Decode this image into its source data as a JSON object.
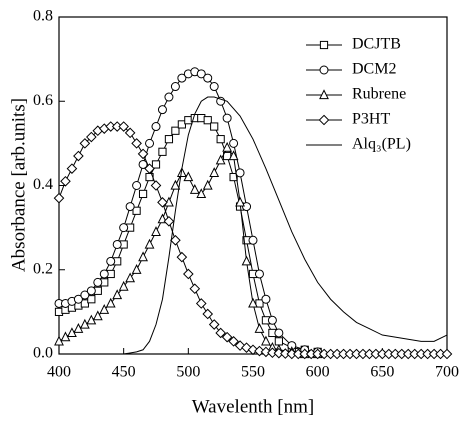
{
  "chart_data": {
    "type": "line",
    "xlabel": "Wavelenth [nm]",
    "ylabel": "Absorbance [arb.units]",
    "xlim": [
      400,
      700
    ],
    "ylim": [
      0,
      0.8
    ],
    "xticks": [
      400,
      450,
      500,
      550,
      600,
      650,
      700
    ],
    "yticks": [
      {
        "value": 0,
        "label": "0.0"
      },
      0.2,
      0.4,
      0.6,
      0.8
    ],
    "legend_loc": "upper right",
    "series": [
      {
        "name": "DCJTB",
        "color": "#000000",
        "marker": "square",
        "x": [
          400,
          405,
          410,
          415,
          420,
          425,
          430,
          435,
          440,
          445,
          450,
          455,
          460,
          465,
          470,
          475,
          480,
          485,
          490,
          495,
          500,
          505,
          510,
          515,
          520,
          525,
          530,
          535,
          540,
          545,
          550,
          555,
          560,
          565,
          570,
          580,
          590,
          600
        ],
        "values": [
          0.1,
          0.105,
          0.11,
          0.115,
          0.12,
          0.13,
          0.15,
          0.17,
          0.19,
          0.22,
          0.26,
          0.3,
          0.34,
          0.38,
          0.42,
          0.45,
          0.48,
          0.51,
          0.53,
          0.545,
          0.555,
          0.56,
          0.56,
          0.555,
          0.54,
          0.51,
          0.47,
          0.42,
          0.35,
          0.27,
          0.19,
          0.12,
          0.08,
          0.05,
          0.03,
          0.015,
          0.01,
          0.005
        ]
      },
      {
        "name": "DCM2",
        "color": "#000000",
        "marker": "circle",
        "x": [
          400,
          405,
          410,
          415,
          420,
          425,
          430,
          435,
          440,
          445,
          450,
          455,
          460,
          465,
          470,
          475,
          480,
          485,
          490,
          495,
          500,
          505,
          510,
          515,
          520,
          525,
          530,
          535,
          540,
          545,
          550,
          555,
          560,
          565,
          570,
          580,
          590,
          600
        ],
        "values": [
          0.12,
          0.12,
          0.125,
          0.13,
          0.14,
          0.15,
          0.17,
          0.19,
          0.22,
          0.26,
          0.3,
          0.35,
          0.4,
          0.45,
          0.5,
          0.54,
          0.58,
          0.61,
          0.635,
          0.655,
          0.665,
          0.67,
          0.665,
          0.655,
          0.635,
          0.6,
          0.56,
          0.5,
          0.43,
          0.35,
          0.27,
          0.19,
          0.13,
          0.08,
          0.05,
          0.02,
          0.01,
          0.005
        ]
      },
      {
        "name": "Rubrene",
        "color": "#000000",
        "marker": "triangle",
        "x": [
          400,
          405,
          410,
          415,
          420,
          425,
          430,
          435,
          440,
          445,
          450,
          455,
          460,
          465,
          470,
          475,
          480,
          485,
          490,
          495,
          500,
          505,
          510,
          515,
          520,
          525,
          530,
          535,
          540,
          545,
          550,
          555,
          560,
          565,
          570,
          580,
          590,
          600
        ],
        "values": [
          0.03,
          0.04,
          0.05,
          0.06,
          0.07,
          0.08,
          0.09,
          0.105,
          0.12,
          0.14,
          0.16,
          0.18,
          0.2,
          0.23,
          0.26,
          0.29,
          0.32,
          0.36,
          0.4,
          0.43,
          0.42,
          0.39,
          0.38,
          0.4,
          0.43,
          0.46,
          0.49,
          0.47,
          0.36,
          0.22,
          0.12,
          0.06,
          0.03,
          0.015,
          0.01,
          0.005,
          0,
          0
        ]
      },
      {
        "name": "P3HT",
        "color": "#000000",
        "marker": "diamond",
        "x": [
          400,
          405,
          410,
          415,
          420,
          425,
          430,
          435,
          440,
          445,
          450,
          455,
          460,
          465,
          470,
          475,
          480,
          485,
          490,
          495,
          500,
          505,
          510,
          515,
          520,
          525,
          530,
          535,
          540,
          545,
          550,
          555,
          560,
          565,
          570,
          575,
          580,
          585,
          590,
          595,
          600,
          605,
          610,
          615,
          620,
          625,
          630,
          635,
          640,
          645,
          650,
          655,
          660,
          665,
          670,
          675,
          680,
          685,
          690,
          695,
          700
        ],
        "values": [
          0.37,
          0.41,
          0.44,
          0.47,
          0.5,
          0.515,
          0.53,
          0.535,
          0.54,
          0.54,
          0.54,
          0.525,
          0.5,
          0.475,
          0.44,
          0.4,
          0.36,
          0.315,
          0.27,
          0.23,
          0.19,
          0.155,
          0.12,
          0.095,
          0.07,
          0.05,
          0.04,
          0.03,
          0.02,
          0.015,
          0.01,
          0.007,
          0.005,
          0.003,
          0.002,
          0.001,
          0,
          0,
          0,
          0,
          0,
          0,
          0,
          0,
          0,
          0,
          0,
          0,
          0,
          0,
          0,
          0,
          0,
          0,
          0,
          0,
          0,
          0,
          0,
          0,
          0
        ]
      },
      {
        "name": "Alq₃(PL)",
        "color": "#000000",
        "marker": "none",
        "x": [
          400,
          450,
          460,
          465,
          470,
          475,
          480,
          485,
          490,
          495,
          500,
          505,
          510,
          515,
          520,
          530,
          540,
          550,
          560,
          570,
          580,
          590,
          600,
          610,
          620,
          630,
          640,
          650,
          660,
          670,
          680,
          690,
          700
        ],
        "values": [
          0,
          0,
          0.005,
          0.01,
          0.03,
          0.07,
          0.13,
          0.23,
          0.34,
          0.44,
          0.52,
          0.57,
          0.6,
          0.61,
          0.61,
          0.6,
          0.565,
          0.51,
          0.44,
          0.365,
          0.29,
          0.225,
          0.17,
          0.13,
          0.1,
          0.075,
          0.06,
          0.045,
          0.04,
          0.035,
          0.03,
          0.03,
          0.045
        ]
      }
    ]
  }
}
